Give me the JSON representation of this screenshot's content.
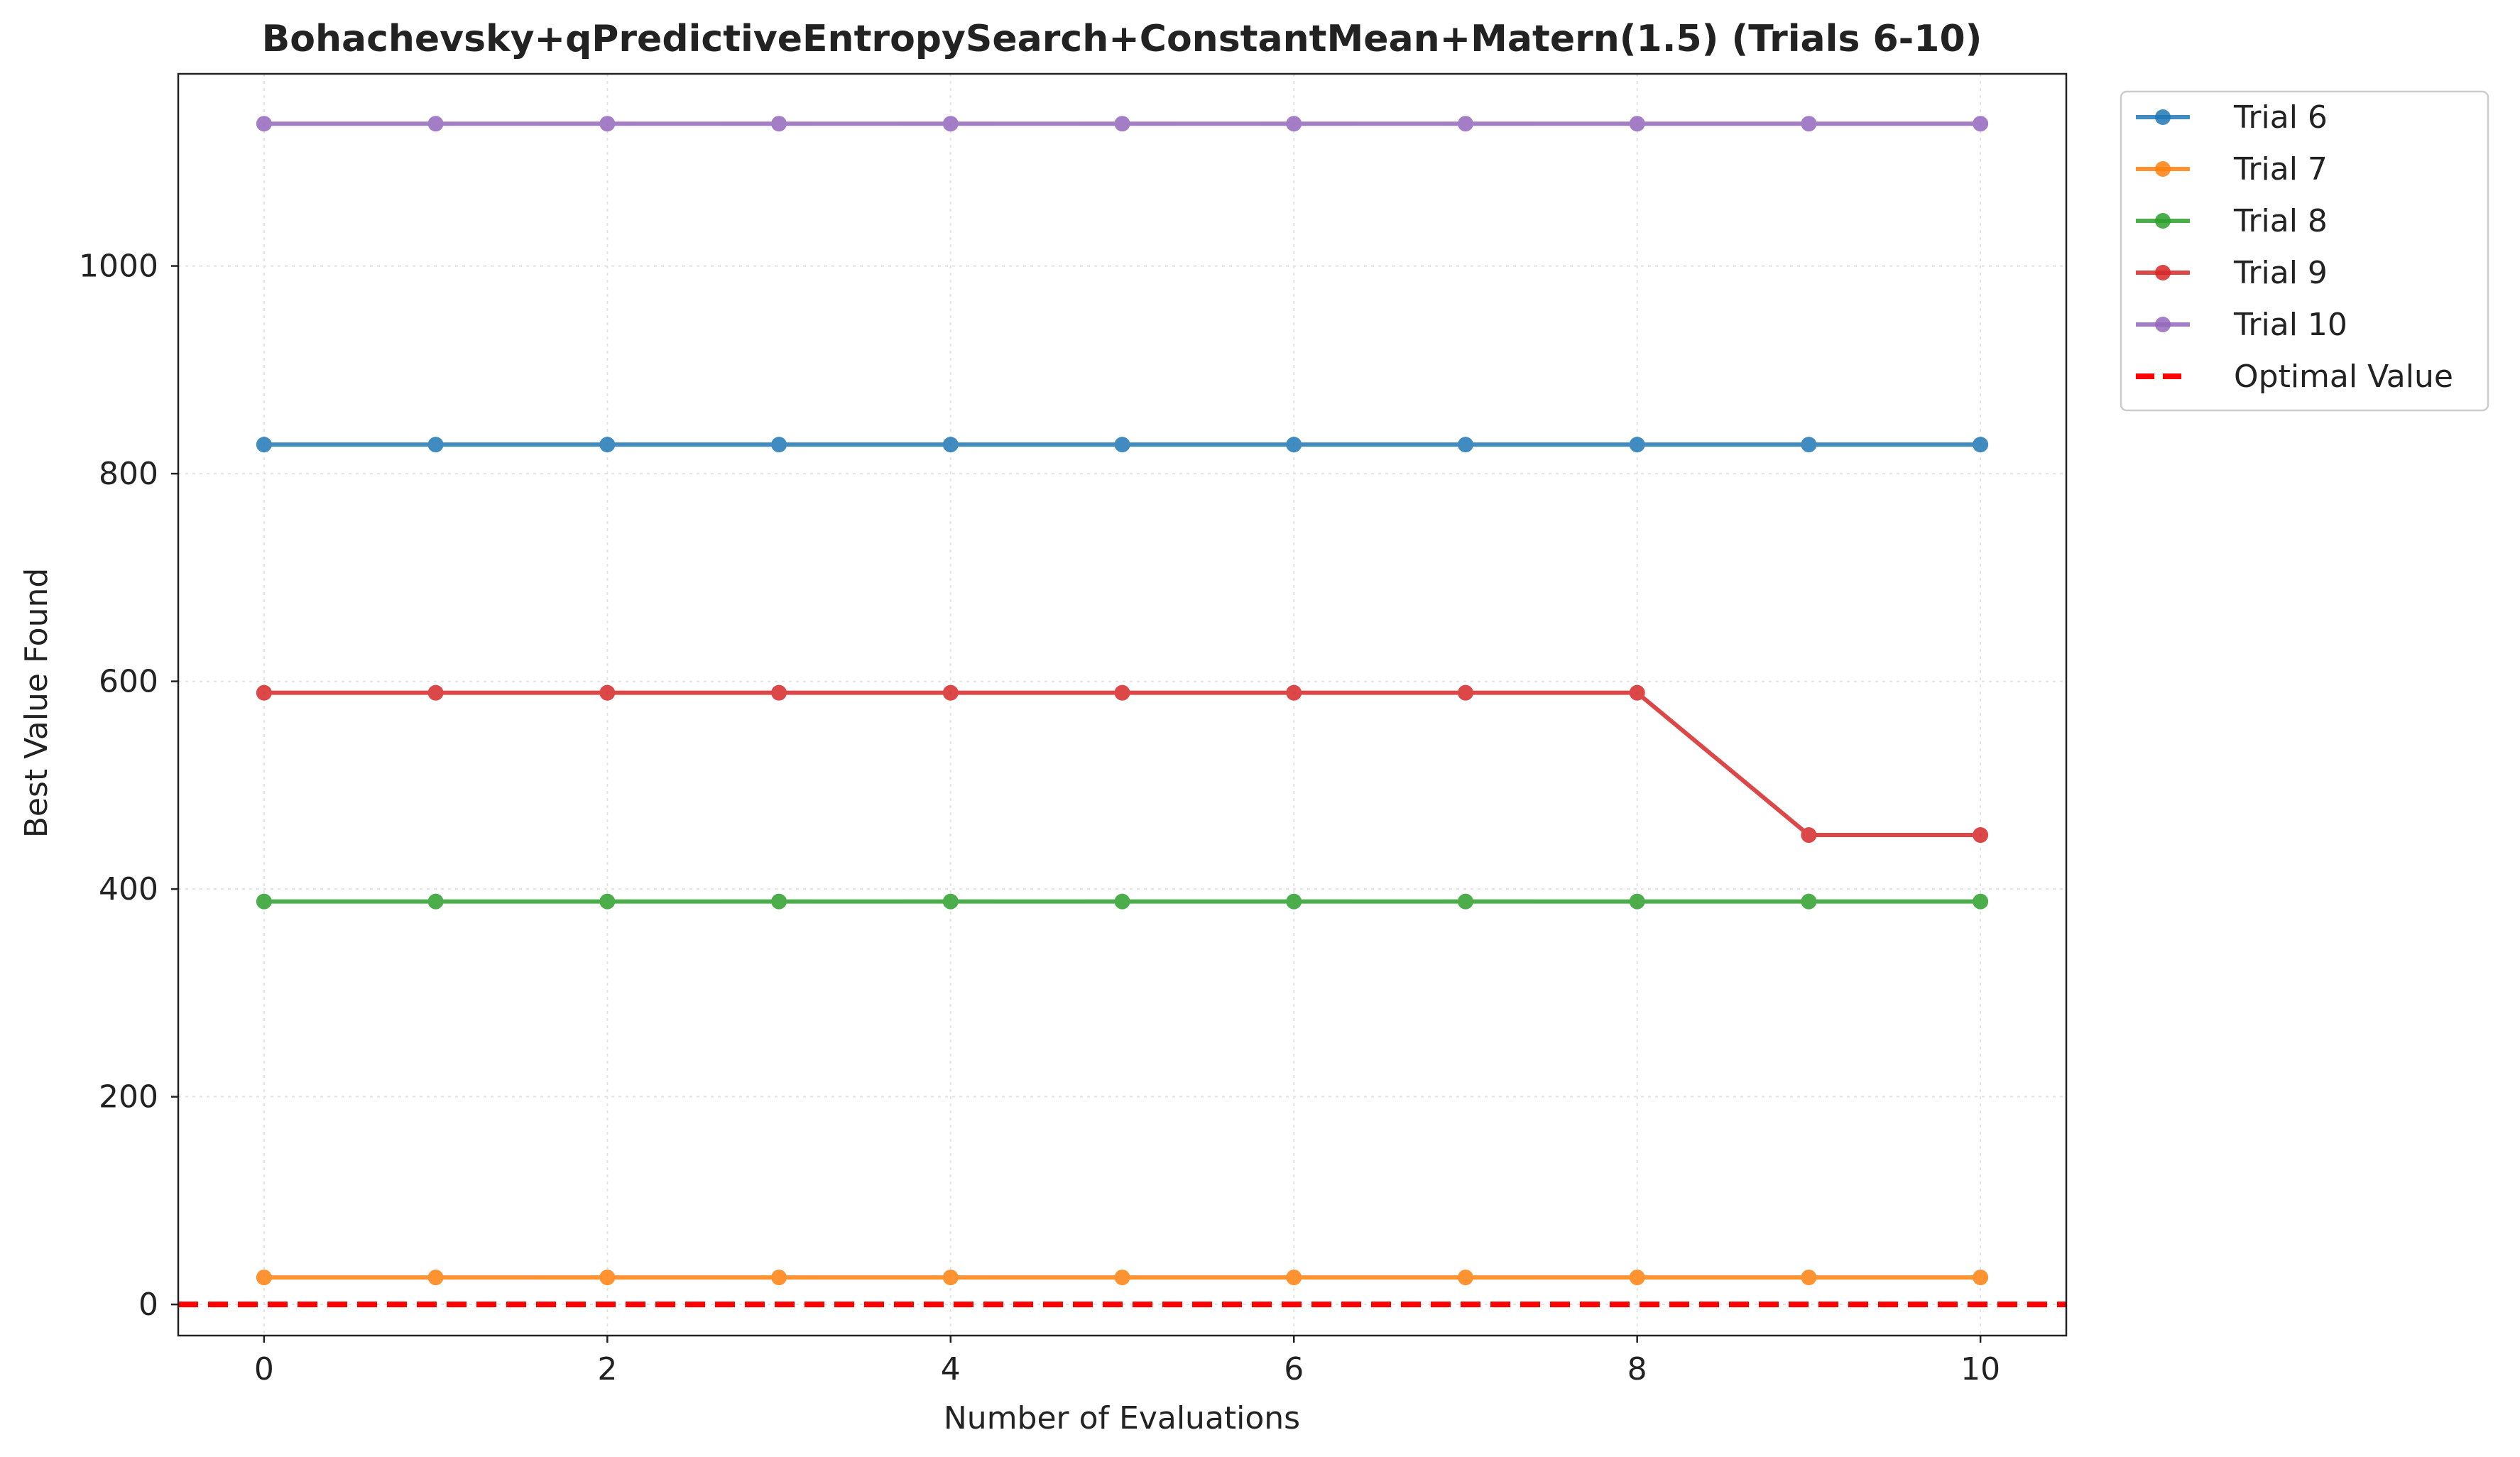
{
  "chart_data": {
    "type": "line",
    "title": "Bohachevsky+qPredictiveEntropySearch+ConstantMean+Matern(1.5) (Trials 6-10)",
    "xlabel": "Number of Evaluations",
    "ylabel": "Best Value Found",
    "x": [
      0,
      1,
      2,
      3,
      4,
      5,
      6,
      7,
      8,
      9,
      10
    ],
    "xlim": [
      -0.5,
      10.5
    ],
    "ylim": [
      -30,
      1185
    ],
    "xticks": [
      0,
      2,
      4,
      6,
      8,
      10
    ],
    "yticks": [
      0,
      200,
      400,
      600,
      800,
      1000
    ],
    "grid": true,
    "legend_position": "outside top-right",
    "series": [
      {
        "name": "Trial 6",
        "color": "#1f77b4",
        "values": [
          828,
          828,
          828,
          828,
          828,
          828,
          828,
          828,
          828,
          828,
          828
        ]
      },
      {
        "name": "Trial 7",
        "color": "#ff7f0e",
        "values": [
          26,
          26,
          26,
          26,
          26,
          26,
          26,
          26,
          26,
          26,
          26
        ]
      },
      {
        "name": "Trial 8",
        "color": "#2ca02c",
        "values": [
          388,
          388,
          388,
          388,
          388,
          388,
          388,
          388,
          388,
          388,
          388
        ]
      },
      {
        "name": "Trial 9",
        "color": "#d62728",
        "values": [
          589,
          589,
          589,
          589,
          589,
          589,
          589,
          589,
          589,
          452,
          452
        ]
      },
      {
        "name": "Trial 10",
        "color": "#9467bd",
        "values": [
          1137,
          1137,
          1137,
          1137,
          1137,
          1137,
          1137,
          1137,
          1137,
          1137,
          1137
        ]
      }
    ],
    "reference_line": {
      "name": "Optimal Value",
      "value": 0,
      "color": "#ff0000",
      "style": "dashed"
    }
  }
}
